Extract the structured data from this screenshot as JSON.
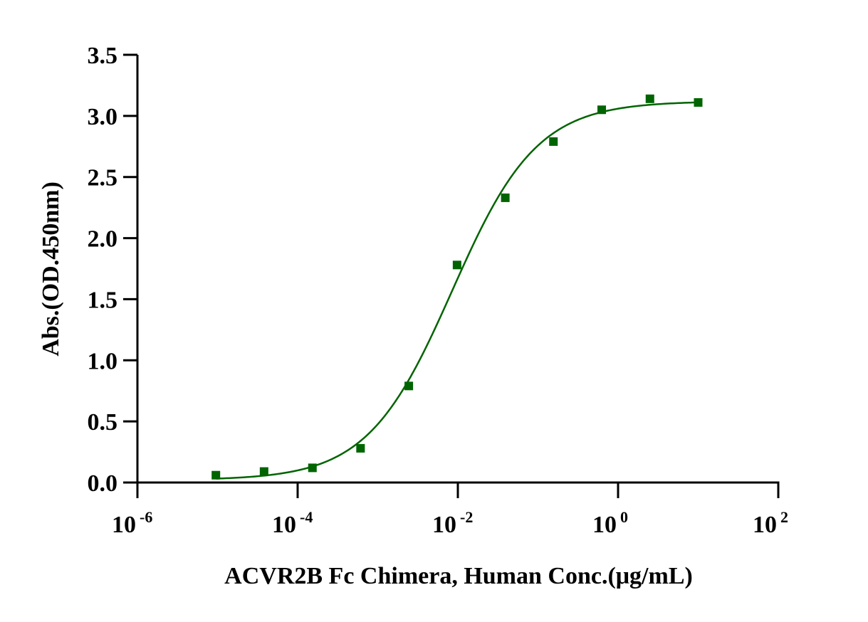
{
  "chart_data": {
    "type": "scatter",
    "xlabel": "ACVR2B Fc Chimera, Human Conc.(μg/mL)",
    "ylabel": "Abs.(OD.450nm)",
    "x_scale": "log",
    "xlim": [
      1e-06,
      100
    ],
    "ylim": [
      0,
      3.5
    ],
    "x_ticks": [
      {
        "base": "10",
        "exp": "-6",
        "value": 1e-06
      },
      {
        "base": "10",
        "exp": "-4",
        "value": 0.0001
      },
      {
        "base": "10",
        "exp": "-2",
        "value": 0.01
      },
      {
        "base": "10",
        "exp": "0",
        "value": 1
      },
      {
        "base": "10",
        "exp": "2",
        "value": 100
      }
    ],
    "y_ticks": [
      "0.0",
      "0.5",
      "1.0",
      "1.5",
      "2.0",
      "2.5",
      "3.0",
      "3.5"
    ],
    "grid": false,
    "legend": "none",
    "color": "#006400",
    "series": [
      {
        "marker": "square",
        "x": [
          9.54e-06,
          3.81e-05,
          0.000153,
          0.00061,
          0.00244,
          0.00977,
          0.0391,
          0.156,
          0.625,
          2.5,
          10
        ],
        "y": [
          0.06,
          0.09,
          0.12,
          0.28,
          0.79,
          1.78,
          2.33,
          2.79,
          3.05,
          3.14,
          3.11
        ]
      }
    ],
    "fit": {
      "type": "4PL",
      "bottom": 0.02,
      "top": 3.12,
      "ec50": 0.0085,
      "hill": 0.82
    }
  }
}
